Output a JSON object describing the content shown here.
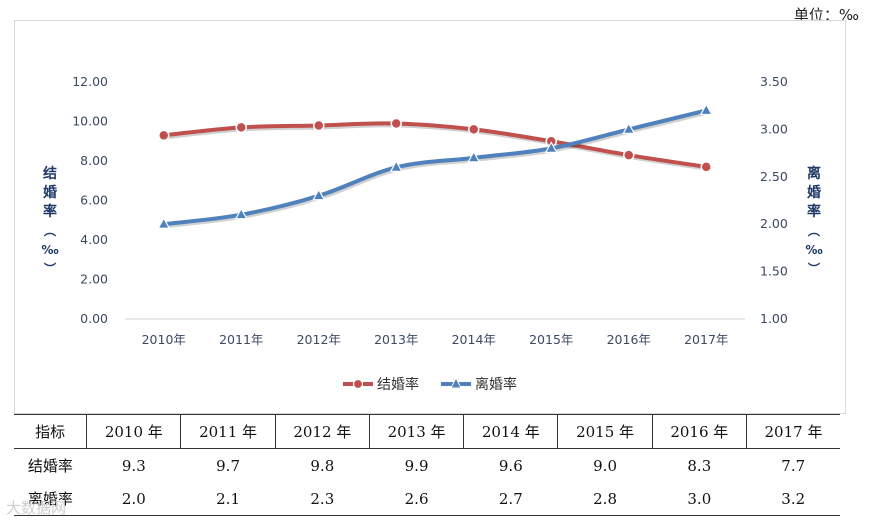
{
  "unit_label": "单位：‰",
  "chart_data": {
    "type": "line",
    "categories": [
      "2010年",
      "2011年",
      "2012年",
      "2013年",
      "2014年",
      "2015年",
      "2016年",
      "2017年"
    ],
    "series": [
      {
        "name": "结婚率",
        "axis": "left",
        "color": "#c0504d",
        "marker": "circle",
        "values": [
          9.3,
          9.7,
          9.8,
          9.9,
          9.6,
          9.0,
          8.3,
          7.7
        ]
      },
      {
        "name": "离婚率",
        "axis": "right",
        "color": "#4f81bd",
        "marker": "triangle",
        "values": [
          2.0,
          2.1,
          2.3,
          2.6,
          2.7,
          2.8,
          3.0,
          3.2
        ]
      }
    ],
    "y_left": {
      "label": "结婚率（‰）",
      "min": 0,
      "max": 12,
      "ticks": [
        "0.00",
        "2.00",
        "4.00",
        "6.00",
        "8.00",
        "10.00",
        "12.00"
      ]
    },
    "y_right": {
      "label": "离婚率（‰）",
      "min": 1,
      "max": 3.5,
      "ticks": [
        "1.00",
        "1.50",
        "2.00",
        "2.50",
        "3.00",
        "3.50"
      ]
    },
    "legend_position": "bottom",
    "grid": false
  },
  "table": {
    "header": [
      "指标",
      "2010 年",
      "2011 年",
      "2012 年",
      "2013 年",
      "2014 年",
      "2015 年",
      "2016 年",
      "2017 年"
    ],
    "rows": [
      {
        "metric": "结婚率",
        "values": [
          "9.3",
          "9.7",
          "9.8",
          "9.9",
          "9.6",
          "9.0",
          "8.3",
          "7.7"
        ]
      },
      {
        "metric": "离婚率",
        "values": [
          "2.0",
          "2.1",
          "2.3",
          "2.6",
          "2.7",
          "2.8",
          "3.0",
          "3.2"
        ]
      }
    ]
  },
  "watermark": "大数据网"
}
